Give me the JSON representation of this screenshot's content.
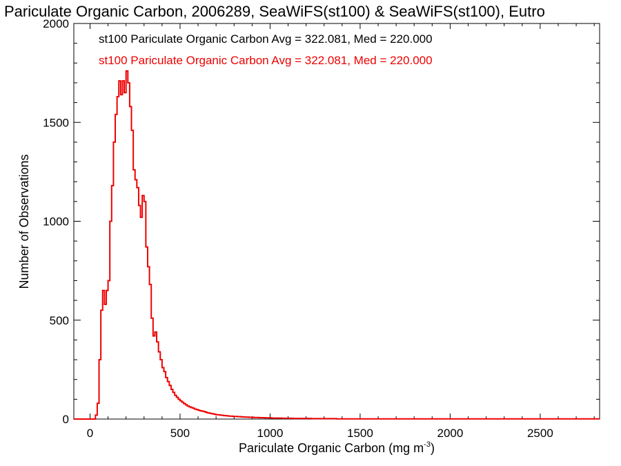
{
  "chart_data": {
    "type": "histogram",
    "title": "Pariculate Organic Carbon, 2006289, SeaWiFS(st100) & SeaWiFS(st100), Eutro",
    "xlabel": "Pariculate Organic Carbon (mg m",
    "xlabel_sup": "-3",
    "xlabel_close": ")",
    "ylabel": "Number of Observations",
    "xlim": [
      -90,
      2830
    ],
    "ylim": [
      0,
      2000
    ],
    "x_ticks": [
      0,
      500,
      1000,
      1500,
      2000,
      2500
    ],
    "x_tick_labels": [
      "0",
      "500",
      "1000",
      "1500",
      "2000",
      "2500"
    ],
    "y_ticks": [
      0,
      500,
      1000,
      1500,
      2000
    ],
    "y_tick_labels": [
      "0",
      "500",
      "1000",
      "1500",
      "2000"
    ],
    "bin_width": 10,
    "legend": [
      {
        "text": "st100 Pariculate Organic Carbon Avg = 322.081, Med = 220.000",
        "color": "#000000"
      },
      {
        "text": "st100 Pariculate Organic Carbon Avg = 322.081, Med = 220.000",
        "color": "#ee0000"
      }
    ],
    "series": [
      {
        "color": "#ee0000",
        "bins": [
          [
            -90,
            0
          ],
          [
            -80,
            0
          ],
          [
            -70,
            0
          ],
          [
            -60,
            0
          ],
          [
            -50,
            0
          ],
          [
            -40,
            0
          ],
          [
            -30,
            0
          ],
          [
            -20,
            0
          ],
          [
            -10,
            0
          ],
          [
            0,
            0
          ],
          [
            10,
            0
          ],
          [
            20,
            0
          ],
          [
            30,
            20
          ],
          [
            40,
            80
          ],
          [
            50,
            300
          ],
          [
            60,
            550
          ],
          [
            70,
            650
          ],
          [
            80,
            580
          ],
          [
            90,
            650
          ],
          [
            100,
            700
          ],
          [
            110,
            1000
          ],
          [
            120,
            1180
          ],
          [
            130,
            1400
          ],
          [
            140,
            1540
          ],
          [
            150,
            1630
          ],
          [
            160,
            1710
          ],
          [
            170,
            1640
          ],
          [
            180,
            1710
          ],
          [
            190,
            1650
          ],
          [
            200,
            1760
          ],
          [
            210,
            1700
          ],
          [
            220,
            1580
          ],
          [
            230,
            1460
          ],
          [
            240,
            1260
          ],
          [
            250,
            1210
          ],
          [
            260,
            1170
          ],
          [
            270,
            1080
          ],
          [
            280,
            1020
          ],
          [
            290,
            1130
          ],
          [
            300,
            1100
          ],
          [
            310,
            870
          ],
          [
            320,
            770
          ],
          [
            330,
            680
          ],
          [
            340,
            510
          ],
          [
            350,
            420
          ],
          [
            360,
            440
          ],
          [
            370,
            390
          ],
          [
            380,
            340
          ],
          [
            390,
            300
          ],
          [
            400,
            260
          ],
          [
            410,
            240
          ],
          [
            420,
            210
          ],
          [
            430,
            190
          ],
          [
            440,
            170
          ],
          [
            450,
            150
          ],
          [
            460,
            135
          ],
          [
            470,
            120
          ],
          [
            480,
            110
          ],
          [
            490,
            100
          ],
          [
            500,
            92
          ],
          [
            510,
            85
          ],
          [
            520,
            78
          ],
          [
            530,
            72
          ],
          [
            540,
            66
          ],
          [
            550,
            62
          ],
          [
            560,
            58
          ],
          [
            570,
            55
          ],
          [
            580,
            50
          ],
          [
            590,
            48
          ],
          [
            600,
            45
          ],
          [
            610,
            42
          ],
          [
            620,
            40
          ],
          [
            630,
            38
          ],
          [
            640,
            35
          ],
          [
            650,
            32
          ],
          [
            660,
            30
          ],
          [
            670,
            28
          ],
          [
            680,
            26
          ],
          [
            690,
            24
          ],
          [
            700,
            22
          ],
          [
            710,
            22
          ],
          [
            720,
            20
          ],
          [
            730,
            19
          ],
          [
            740,
            18
          ],
          [
            750,
            17
          ],
          [
            760,
            16
          ],
          [
            770,
            15
          ],
          [
            780,
            15
          ],
          [
            790,
            14
          ],
          [
            800,
            13
          ],
          [
            810,
            13
          ],
          [
            820,
            12
          ],
          [
            830,
            12
          ],
          [
            840,
            11
          ],
          [
            850,
            11
          ],
          [
            860,
            10
          ],
          [
            870,
            10
          ],
          [
            880,
            9
          ],
          [
            890,
            9
          ],
          [
            900,
            9
          ],
          [
            910,
            8
          ],
          [
            920,
            8
          ],
          [
            930,
            8
          ],
          [
            940,
            7
          ],
          [
            950,
            7
          ],
          [
            960,
            7
          ],
          [
            970,
            6
          ],
          [
            980,
            6
          ],
          [
            990,
            6
          ],
          [
            1000,
            6
          ],
          [
            1010,
            5
          ],
          [
            1020,
            5
          ],
          [
            1030,
            5
          ],
          [
            1040,
            5
          ],
          [
            1050,
            5
          ],
          [
            1060,
            5
          ],
          [
            1070,
            4
          ],
          [
            1080,
            4
          ],
          [
            1090,
            4
          ],
          [
            1100,
            4
          ],
          [
            1110,
            4
          ],
          [
            1120,
            4
          ],
          [
            1130,
            3
          ],
          [
            1140,
            3
          ],
          [
            1150,
            3
          ],
          [
            1160,
            3
          ],
          [
            1170,
            3
          ],
          [
            1180,
            3
          ],
          [
            1190,
            3
          ],
          [
            1200,
            3
          ],
          [
            1210,
            3
          ],
          [
            1220,
            3
          ],
          [
            1230,
            2
          ],
          [
            1240,
            2
          ],
          [
            1250,
            2
          ],
          [
            1260,
            2
          ],
          [
            1270,
            2
          ],
          [
            1280,
            2
          ],
          [
            1290,
            2
          ],
          [
            1300,
            2
          ],
          [
            1310,
            2
          ],
          [
            1320,
            2
          ],
          [
            1330,
            2
          ],
          [
            1340,
            2
          ],
          [
            1350,
            2
          ],
          [
            1360,
            2
          ],
          [
            1370,
            1
          ],
          [
            1380,
            1
          ],
          [
            1390,
            1
          ],
          [
            1400,
            1
          ],
          [
            1410,
            1
          ],
          [
            1420,
            1
          ],
          [
            1430,
            1
          ],
          [
            1440,
            1
          ],
          [
            1450,
            1
          ],
          [
            1460,
            1
          ],
          [
            1470,
            1
          ],
          [
            1480,
            1
          ],
          [
            1490,
            1
          ],
          [
            1500,
            1
          ],
          [
            1510,
            1
          ],
          [
            1520,
            1
          ],
          [
            1530,
            1
          ],
          [
            1540,
            1
          ],
          [
            1550,
            1
          ],
          [
            1560,
            1
          ],
          [
            1570,
            1
          ],
          [
            1580,
            1
          ],
          [
            1590,
            1
          ],
          [
            1600,
            1
          ],
          [
            1610,
            1
          ],
          [
            1620,
            1
          ],
          [
            1630,
            1
          ],
          [
            1640,
            1
          ],
          [
            1650,
            1
          ],
          [
            1660,
            1
          ],
          [
            1670,
            1
          ],
          [
            1680,
            1
          ],
          [
            1690,
            1
          ],
          [
            1700,
            1
          ],
          [
            1710,
            1
          ],
          [
            1720,
            1
          ],
          [
            1730,
            1
          ],
          [
            1740,
            1
          ],
          [
            1750,
            1
          ],
          [
            1760,
            1
          ],
          [
            1770,
            1
          ],
          [
            1780,
            1
          ],
          [
            1790,
            1
          ],
          [
            1800,
            1
          ],
          [
            1810,
            1
          ],
          [
            1820,
            1
          ],
          [
            1830,
            1
          ],
          [
            1840,
            1
          ],
          [
            1850,
            1
          ],
          [
            1860,
            1
          ],
          [
            1870,
            1
          ],
          [
            1880,
            1
          ],
          [
            1890,
            1
          ],
          [
            1900,
            1
          ],
          [
            1910,
            1
          ],
          [
            1920,
            1
          ],
          [
            1930,
            1
          ],
          [
            1940,
            1
          ],
          [
            1950,
            1
          ],
          [
            1960,
            1
          ],
          [
            1970,
            1
          ],
          [
            1980,
            1
          ],
          [
            1990,
            1
          ],
          [
            2000,
            1
          ],
          [
            2010,
            1
          ],
          [
            2020,
            1
          ],
          [
            2030,
            1
          ],
          [
            2040,
            1
          ],
          [
            2050,
            1
          ],
          [
            2060,
            1
          ],
          [
            2070,
            1
          ],
          [
            2080,
            1
          ],
          [
            2090,
            1
          ],
          [
            2100,
            1
          ],
          [
            2110,
            1
          ],
          [
            2120,
            1
          ],
          [
            2130,
            1
          ],
          [
            2140,
            1
          ],
          [
            2150,
            1
          ],
          [
            2160,
            1
          ],
          [
            2170,
            1
          ],
          [
            2180,
            1
          ],
          [
            2190,
            1
          ],
          [
            2200,
            1
          ],
          [
            2210,
            1
          ],
          [
            2220,
            1
          ],
          [
            2230,
            1
          ],
          [
            2240,
            1
          ],
          [
            2250,
            1
          ],
          [
            2260,
            1
          ],
          [
            2270,
            1
          ],
          [
            2280,
            1
          ],
          [
            2290,
            1
          ],
          [
            2300,
            1
          ],
          [
            2310,
            1
          ],
          [
            2320,
            1
          ],
          [
            2330,
            1
          ],
          [
            2340,
            1
          ],
          [
            2350,
            1
          ],
          [
            2360,
            1
          ],
          [
            2370,
            1
          ],
          [
            2380,
            1
          ],
          [
            2390,
            1
          ],
          [
            2400,
            1
          ],
          [
            2410,
            1
          ],
          [
            2420,
            1
          ],
          [
            2430,
            1
          ],
          [
            2440,
            1
          ],
          [
            2450,
            1
          ],
          [
            2460,
            1
          ],
          [
            2470,
            1
          ],
          [
            2480,
            1
          ],
          [
            2490,
            1
          ],
          [
            2500,
            1
          ],
          [
            2510,
            1
          ],
          [
            2520,
            1
          ],
          [
            2530,
            1
          ],
          [
            2540,
            1
          ],
          [
            2550,
            1
          ],
          [
            2560,
            1
          ],
          [
            2570,
            1
          ],
          [
            2580,
            1
          ],
          [
            2590,
            1
          ],
          [
            2600,
            1
          ],
          [
            2610,
            1
          ],
          [
            2620,
            1
          ],
          [
            2630,
            1
          ],
          [
            2640,
            1
          ],
          [
            2650,
            1
          ],
          [
            2660,
            1
          ],
          [
            2670,
            1
          ],
          [
            2680,
            1
          ],
          [
            2690,
            1
          ],
          [
            2700,
            1
          ],
          [
            2710,
            1
          ],
          [
            2720,
            1
          ],
          [
            2730,
            1
          ],
          [
            2740,
            1
          ],
          [
            2750,
            1
          ],
          [
            2760,
            1
          ],
          [
            2770,
            1
          ],
          [
            2780,
            1
          ],
          [
            2790,
            1
          ],
          [
            2800,
            1
          ],
          [
            2810,
            1
          ],
          [
            2820,
            1
          ]
        ]
      }
    ]
  }
}
